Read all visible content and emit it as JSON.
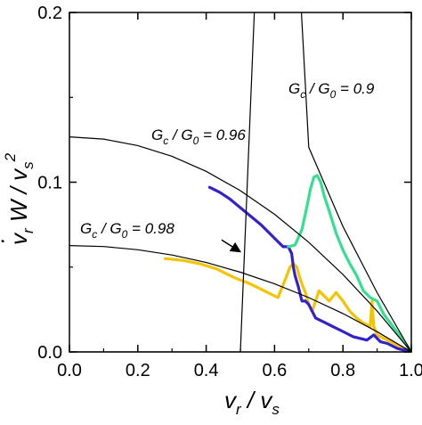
{
  "chart_data": {
    "type": "line",
    "title": "",
    "xlabel": "v_r / v_s",
    "ylabel": "v̇_r W / v_s^2",
    "xlim": [
      0.0,
      1.0
    ],
    "ylim": [
      0.0,
      0.2
    ],
    "x_ticks": [
      0.0,
      0.2,
      0.4,
      0.6,
      0.8,
      1.0
    ],
    "x_tick_labels": [
      "0.0",
      "0.2",
      "0.4",
      "0.6",
      "0.8",
      "1.0"
    ],
    "y_ticks": [
      0.0,
      0.1,
      0.2
    ],
    "y_tick_labels": [
      "0.0",
      "0.1",
      "0.2"
    ],
    "grid": false,
    "legend": "none",
    "theory_curves": [
      {
        "label_parts": {
          "g1": "G",
          "sub1": "c",
          "slash": " / ",
          "g2": "G",
          "sub2": "0",
          "rest": " = 0.9"
        },
        "x": [
          0.0,
          0.1,
          0.2,
          0.3,
          0.4,
          0.5,
          0.6,
          0.7,
          0.8,
          0.9,
          1.0
        ],
        "y": [
          0.0,
          0.0,
          0.0,
          0.0,
          0.0,
          0.0,
          0.4905,
          0.1206,
          0.0739,
          0.0349,
          0.0
        ]
      },
      {
        "label_parts": {
          "g1": "G",
          "sub1": "c",
          "slash": " / ",
          "g2": "G",
          "sub2": "0",
          "rest": " = 0.96"
        },
        "x": [
          0.0,
          0.1,
          0.2,
          0.3,
          0.4,
          0.5,
          0.6,
          0.7,
          0.8,
          0.9,
          1.0
        ],
        "y": [
          0.1267,
          0.1254,
          0.1216,
          0.1153,
          0.1064,
          0.095,
          0.0811,
          0.0646,
          0.0456,
          0.0241,
          0.0
        ]
      },
      {
        "label_parts": {
          "g1": "G",
          "sub1": "c",
          "slash": " / ",
          "g2": "G",
          "sub2": "0",
          "rest": " = 0.98"
        },
        "x": [
          0.0,
          0.1,
          0.2,
          0.3,
          0.4,
          0.5,
          0.6,
          0.7,
          0.8,
          0.9,
          1.0
        ],
        "y": [
          0.0627,
          0.0621,
          0.0602,
          0.0571,
          0.0527,
          0.047,
          0.0401,
          0.032,
          0.0226,
          0.0119,
          0.0
        ]
      }
    ],
    "series": [
      {
        "color": "#f5c400",
        "x": [
          0.28,
          0.33,
          0.38,
          0.43,
          0.48,
          0.53,
          0.58,
          0.61,
          0.63,
          0.645,
          0.655,
          0.665,
          0.672,
          0.68,
          0.69,
          0.7,
          0.71,
          0.72,
          0.73,
          0.74,
          0.76,
          0.78,
          0.8,
          0.82,
          0.84,
          0.86,
          0.88,
          0.885,
          0.89,
          0.9,
          0.92,
          0.94,
          0.97,
          1.0
        ],
        "y": [
          0.055,
          0.054,
          0.052,
          0.049,
          0.044,
          0.04,
          0.035,
          0.032,
          0.042,
          0.05,
          0.052,
          0.05,
          0.045,
          0.04,
          0.035,
          0.028,
          0.024,
          0.03,
          0.036,
          0.034,
          0.03,
          0.035,
          0.03,
          0.024,
          0.02,
          0.017,
          0.015,
          0.03,
          0.015,
          0.01,
          0.008,
          0.006,
          0.003,
          0.0
        ]
      },
      {
        "color": "#3322cc",
        "x": [
          0.41,
          0.44,
          0.47,
          0.5,
          0.53,
          0.56,
          0.59,
          0.61,
          0.625,
          0.64,
          0.65,
          0.655,
          0.66,
          0.67,
          0.68,
          0.69,
          0.7,
          0.71,
          0.72,
          0.73,
          0.75,
          0.77,
          0.79,
          0.81,
          0.83,
          0.85,
          0.87,
          0.89,
          0.91,
          0.93,
          0.96,
          1.0
        ],
        "y": [
          0.097,
          0.094,
          0.09,
          0.085,
          0.08,
          0.075,
          0.069,
          0.065,
          0.062,
          0.062,
          0.058,
          0.05,
          0.045,
          0.038,
          0.03,
          0.03,
          0.028,
          0.024,
          0.02,
          0.019,
          0.017,
          0.015,
          0.013,
          0.011,
          0.009,
          0.008,
          0.007,
          0.01,
          0.006,
          0.005,
          0.002,
          0.0
        ]
      },
      {
        "color": "#33e08f",
        "x": [
          0.64,
          0.66,
          0.68,
          0.695,
          0.705,
          0.715,
          0.725,
          0.735,
          0.745,
          0.76,
          0.78,
          0.8,
          0.82,
          0.84,
          0.86,
          0.88,
          0.9,
          0.92,
          0.95,
          0.98,
          1.0
        ],
        "y": [
          0.062,
          0.063,
          0.072,
          0.086,
          0.096,
          0.103,
          0.104,
          0.1,
          0.092,
          0.083,
          0.07,
          0.06,
          0.052,
          0.045,
          0.036,
          0.032,
          0.03,
          0.022,
          0.014,
          0.006,
          0.0
        ]
      }
    ],
    "annotations": [
      {
        "type": "arrow",
        "from": [
          0.445,
          0.066
        ],
        "to": [
          0.5,
          0.059
        ]
      }
    ],
    "ylabel_parts": {
      "v": "v",
      "dot": "·",
      "sub_r": "r",
      "W": " W / v",
      "sub_s": "s",
      "sup_2": "2"
    },
    "xlabel_parts": {
      "v1": "v",
      "sub_r": "r",
      "slash": " / v",
      "sub_s": "s"
    }
  }
}
